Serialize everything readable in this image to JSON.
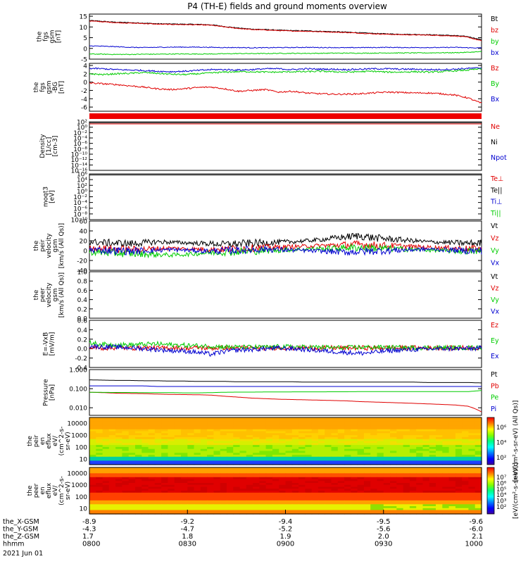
{
  "title": "P4 (TH-E) fields and ground moments overview",
  "colors": {
    "black": "#000000",
    "red": "#e00000",
    "green": "#00cc00",
    "blue": "#0000d0"
  },
  "chart_data": [
    {
      "type": "line",
      "ylabel": [
        "the",
        "fgs",
        "gsm",
        "[nT]"
      ],
      "yticks": [
        -5,
        0,
        5,
        10,
        15
      ],
      "ylim": [
        -5,
        16
      ],
      "legend": [
        {
          "name": "Bt",
          "color": "#000000"
        },
        {
          "name": "bz",
          "color": "#e00000"
        },
        {
          "name": "by",
          "color": "#00cc00"
        },
        {
          "name": "bx",
          "color": "#0000d0"
        }
      ],
      "series": [
        {
          "name": "Bt",
          "color": "#000000",
          "values": [
            13,
            12.6,
            12.2,
            12,
            11.8,
            11.5,
            11.4,
            11.3,
            11.2,
            11,
            10.2,
            9.5,
            9,
            8.8,
            8.5,
            8.3,
            8.2,
            8,
            7.8,
            7.6,
            7.3,
            7,
            6.8,
            6.6,
            6.5,
            6.4,
            6.2,
            6,
            5.5,
            4
          ]
        },
        {
          "name": "bz",
          "color": "#e00000",
          "values": [
            12.8,
            12.4,
            12,
            11.8,
            11.6,
            11.3,
            11.2,
            11.1,
            11,
            10.8,
            10,
            9.3,
            8.8,
            8.6,
            8.3,
            8.1,
            8,
            7.8,
            7.6,
            7.4,
            7.1,
            6.8,
            6.6,
            6.4,
            6.3,
            6.2,
            6,
            5.8,
            5.2,
            3.5
          ]
        },
        {
          "name": "by",
          "color": "#00cc00",
          "values": [
            -2.6,
            -2.7,
            -2.8,
            -2.8,
            -2.7,
            -2.7,
            -2.6,
            -2.6,
            -2.6,
            -2.6,
            -2.5,
            -2.4,
            -2.4,
            -2.4,
            -2.3,
            -2.3,
            -2.3,
            -2.3,
            -2.2,
            -2.2,
            -2.2,
            -2.2,
            -2.1,
            -2.1,
            -2.1,
            -2.1,
            -2,
            -2,
            -1.8,
            -1.5
          ]
        },
        {
          "name": "bx",
          "color": "#0000d0",
          "values": [
            1.2,
            1,
            0.8,
            0.5,
            0.4,
            0.5,
            0.6,
            0.6,
            0.6,
            0.5,
            0.4,
            0.4,
            0.3,
            0.3,
            0.4,
            0.4,
            0.5,
            0.4,
            0.4,
            0.3,
            0.4,
            0.4,
            0.5,
            0.4,
            0.4,
            0.4,
            0.4,
            0.5,
            0.3,
            0.2
          ]
        }
      ]
    },
    {
      "type": "line",
      "ylabel": [
        "the",
        "fgs",
        "gsm",
        "-BG",
        "[nT]"
      ],
      "yticks": [
        -6,
        -4,
        -2,
        0,
        2,
        4
      ],
      "ylim": [
        -7,
        4.5
      ],
      "legend": [
        {
          "name": "Bz",
          "color": "#e00000"
        },
        {
          "name": "By",
          "color": "#00cc00"
        },
        {
          "name": "Bx",
          "color": "#0000d0"
        }
      ],
      "series": [
        {
          "name": "Bz",
          "color": "#e00000",
          "values": [
            -0.2,
            -0.4,
            -0.6,
            -0.9,
            -1.2,
            -1.6,
            -1.8,
            -1.6,
            -1.3,
            -1.2,
            -1.6,
            -2.2,
            -2.0,
            -1.8,
            -2.4,
            -2.2,
            -2.6,
            -2.8,
            -2.9,
            -2.9,
            -2.8,
            -2.6,
            -2.4,
            -2.5,
            -2.6,
            -2.6,
            -2.8,
            -3.1,
            -3.8,
            -5.1
          ]
        },
        {
          "name": "By",
          "color": "#00cc00",
          "values": [
            2.0,
            1.8,
            2.0,
            2.1,
            2.3,
            2.1,
            1.9,
            1.8,
            2.0,
            2.2,
            2.4,
            2.5,
            2.5,
            2.4,
            2.4,
            2.5,
            2.5,
            2.6,
            2.5,
            2.4,
            2.5,
            2.6,
            2.4,
            2.4,
            2.5,
            2.4,
            2.5,
            2.7,
            2.9,
            3.2
          ]
        },
        {
          "name": "Bx",
          "color": "#0000d0",
          "values": [
            3.3,
            3.2,
            3.0,
            2.9,
            2.8,
            2.6,
            2.5,
            2.6,
            2.8,
            3.0,
            3.0,
            2.9,
            3.0,
            3.2,
            3.2,
            3.0,
            3.2,
            3.1,
            3.1,
            3.0,
            3.1,
            3.2,
            3.2,
            3.1,
            3.1,
            3.0,
            3.0,
            3.1,
            3.3,
            3.4
          ]
        }
      ]
    },
    {
      "type": "line",
      "scale": "log",
      "ylabel": [
        "Density",
        "[1/cc]",
        "[cm-3]"
      ],
      "yticks": [
        "10²",
        "10⁰",
        "10⁻²",
        "10⁻⁴",
        "10⁻⁶",
        "10⁻⁸",
        "10⁻¹⁰",
        "10⁻¹²",
        "10⁻¹⁴",
        "10⁻¹⁶"
      ],
      "legend": [
        {
          "name": "Ne",
          "color": "#e00000"
        },
        {
          "name": "Ni",
          "color": "#000000"
        },
        {
          "name": "Npot",
          "color": "#0000d0"
        }
      ]
    },
    {
      "type": "line",
      "scale": "log",
      "ylabel": [
        "moqt3",
        "[eV]"
      ],
      "yticks": [
        "10⁶",
        "10⁴",
        "10²",
        "10⁰",
        "10⁻²",
        "10⁻⁴",
        "10⁻⁶",
        "10⁻⁸",
        "10⁻¹⁰"
      ],
      "legend": [
        {
          "name": "Te⊥",
          "color": "#e00000"
        },
        {
          "name": "Te||",
          "color": "#000000"
        },
        {
          "name": "Ti⊥",
          "color": "#0000d0"
        },
        {
          "name": "Ti||",
          "color": "#00cc00"
        }
      ]
    },
    {
      "type": "line",
      "ylabel": [
        "the",
        "peir",
        "velocity",
        "gsm",
        "[km/s (All Qs)]"
      ],
      "yticks": [
        -40,
        -20,
        0,
        20,
        40,
        60
      ],
      "ylim": [
        -40,
        60
      ],
      "legend": [
        {
          "name": "Vt",
          "color": "#000000"
        },
        {
          "name": "Vz",
          "color": "#e00000"
        },
        {
          "name": "Vy",
          "color": "#00cc00"
        },
        {
          "name": "Vx",
          "color": "#0000d0"
        }
      ],
      "series": [
        {
          "name": "Vt",
          "color": "#000000",
          "values": [
            18,
            16,
            15,
            14,
            16,
            18,
            17,
            16,
            15,
            14,
            13,
            14,
            15,
            16,
            17,
            18,
            20,
            22,
            25,
            28,
            30,
            26,
            24,
            22,
            20,
            18,
            17,
            16,
            15,
            15
          ]
        },
        {
          "name": "Vz",
          "color": "#e00000",
          "values": [
            5,
            4,
            3,
            2,
            3,
            4,
            5,
            4,
            3,
            2,
            3,
            4,
            5,
            6,
            7,
            8,
            9,
            10,
            11,
            12,
            13,
            11,
            10,
            9,
            8,
            7,
            6,
            5,
            4,
            4
          ]
        },
        {
          "name": "Vy",
          "color": "#00cc00",
          "values": [
            -3,
            -4,
            -5,
            -6,
            -7,
            -8,
            -9,
            -8,
            -6,
            -4,
            -3,
            -2,
            -1,
            0,
            1,
            2,
            3,
            4,
            5,
            6,
            6,
            5,
            4,
            3,
            2,
            1,
            0,
            -1,
            -1,
            -2
          ]
        },
        {
          "name": "Vx",
          "color": "#0000d0",
          "values": [
            2,
            1,
            0,
            -1,
            0,
            1,
            2,
            1,
            0,
            -1,
            0,
            1,
            2,
            3,
            2,
            1,
            0,
            -1,
            -2,
            -3,
            -2,
            -1,
            0,
            1,
            2,
            3,
            2,
            1,
            0,
            0
          ]
        }
      ]
    },
    {
      "type": "line",
      "ylabel": [
        "the",
        "peer",
        "velocity",
        "gsm",
        "[km/s (All Qs)]"
      ],
      "yticks": [
        "0.0",
        "0.2",
        "0.4",
        "0.6",
        "0.8",
        "1.0"
      ],
      "ylim": [
        0,
        1
      ],
      "legend": [
        {
          "name": "Vt",
          "color": "#000000"
        },
        {
          "name": "Vz",
          "color": "#e00000"
        },
        {
          "name": "Vy",
          "color": "#00cc00"
        },
        {
          "name": "Vx",
          "color": "#0000d0"
        }
      ]
    },
    {
      "type": "line",
      "ylabel": [
        "E=-VxB",
        "[mV/m]"
      ],
      "yticks": [
        "-0.4",
        "-0.2",
        "0.0",
        "0.2",
        "0.4",
        "0.6"
      ],
      "ylim": [
        -0.4,
        0.6
      ],
      "legend": [
        {
          "name": "Ez",
          "color": "#e00000"
        },
        {
          "name": "Ey",
          "color": "#00cc00"
        },
        {
          "name": "Ex",
          "color": "#0000d0"
        }
      ],
      "series": [
        {
          "name": "Ez",
          "color": "#e00000",
          "values": [
            0.02,
            0.01,
            0.02,
            0.01,
            0.02,
            0.01,
            0.02,
            0.01,
            0.02,
            0.01,
            0.02,
            0.01,
            0.02,
            0.01,
            0.02,
            0.01,
            0.02,
            0.01,
            0.02,
            0.01,
            0.02,
            0.01,
            0.02,
            0.01,
            0.02,
            0.01,
            0.02,
            0.01,
            0.02,
            0.01
          ]
        },
        {
          "name": "Ey",
          "color": "#00cc00",
          "values": [
            0.12,
            0.09,
            0.08,
            0.08,
            0.09,
            0.1,
            0.08,
            0.07,
            0.06,
            0.05,
            0.04,
            0.03,
            0.03,
            0.03,
            0.04,
            0.04,
            0.03,
            0.03,
            0.02,
            0.02,
            0.03,
            0.03,
            0.03,
            0.02,
            0.02,
            0.02,
            0.02,
            0.02,
            0.02,
            0.02
          ]
        },
        {
          "name": "Ex",
          "color": "#0000d0",
          "values": [
            0.05,
            0.04,
            0.03,
            0.02,
            0.0,
            -0.02,
            -0.04,
            -0.05,
            -0.08,
            -0.12,
            -0.06,
            -0.03,
            -0.02,
            0.0,
            0.01,
            0.0,
            -0.02,
            -0.04,
            -0.06,
            -0.08,
            -0.1,
            -0.08,
            -0.05,
            -0.03,
            -0.02,
            -0.01,
            0.0,
            0.0,
            0.0,
            0.01
          ]
        }
      ]
    },
    {
      "type": "line",
      "scale": "log",
      "ylabel": [
        "Pressure",
        "[nPa]"
      ],
      "yticks": [
        "0.010",
        "0.100",
        "1.000"
      ],
      "ylim": [
        0.004,
        1.0
      ],
      "legend": [
        {
          "name": "Pt",
          "color": "#000000"
        },
        {
          "name": "Pb",
          "color": "#e00000"
        },
        {
          "name": "Pe",
          "color": "#00cc00"
        },
        {
          "name": "Pi",
          "color": "#0000d0"
        }
      ],
      "series": [
        {
          "name": "Pt",
          "color": "#000000",
          "values": [
            0.29,
            0.28,
            0.27,
            0.27,
            0.26,
            0.26,
            0.25,
            0.25,
            0.24,
            0.24,
            0.24,
            0.23,
            0.23,
            0.23,
            0.23,
            0.23,
            0.22,
            0.22,
            0.22,
            0.22,
            0.22,
            0.22,
            0.22,
            0.22,
            0.22,
            0.21,
            0.21,
            0.21,
            0.21,
            0.2
          ]
        },
        {
          "name": "Pb",
          "color": "#e00000",
          "values": [
            0.065,
            0.062,
            0.058,
            0.056,
            0.055,
            0.052,
            0.05,
            0.049,
            0.048,
            0.046,
            0.04,
            0.036,
            0.032,
            0.03,
            0.028,
            0.027,
            0.026,
            0.025,
            0.024,
            0.023,
            0.021,
            0.02,
            0.019,
            0.018,
            0.017,
            0.016,
            0.015,
            0.014,
            0.012,
            0.006
          ]
        },
        {
          "name": "Pe",
          "color": "#00cc00",
          "values": [
            0.065,
            0.064,
            0.063,
            0.063,
            0.062,
            0.062,
            0.062,
            0.06,
            0.06,
            0.062,
            0.065,
            0.066,
            0.066,
            0.067,
            0.067,
            0.068,
            0.068,
            0.068,
            0.069,
            0.069,
            0.07,
            0.07,
            0.07,
            0.07,
            0.07,
            0.07,
            0.07,
            0.07,
            0.07,
            0.08
          ]
        },
        {
          "name": "Pi",
          "color": "#0000d0",
          "values": [
            0.14,
            0.14,
            0.14,
            0.14,
            0.14,
            0.13,
            0.13,
            0.13,
            0.13,
            0.13,
            0.13,
            0.13,
            0.13,
            0.13,
            0.13,
            0.13,
            0.13,
            0.13,
            0.13,
            0.13,
            0.13,
            0.13,
            0.13,
            0.13,
            0.13,
            0.13,
            0.13,
            0.13,
            0.13,
            0.13
          ]
        }
      ]
    },
    {
      "type": "heatmap",
      "ylabel": [
        "the",
        "peir",
        "en",
        "eflux",
        "eV/",
        "(cm^2-s-",
        "sr-eV)"
      ],
      "yticks": [
        "10",
        "100",
        "1000",
        "10000"
      ],
      "colorbar_ticks": [
        "10²",
        "10⁴",
        "10⁶"
      ],
      "colorbar_label": "[eV/(cm²-s-sr-eV) (All Qs)]"
    },
    {
      "type": "heatmap",
      "ylabel": [
        "the",
        "peer",
        "en",
        "eflux",
        "eV/",
        "(cm^2-s-",
        "sr-eV)"
      ],
      "yticks": [
        "10",
        "100",
        "1000",
        "10000"
      ],
      "colorbar_ticks": [
        "10²",
        "10³",
        "10⁴",
        "10⁵",
        "10⁶",
        "10⁷"
      ],
      "colorbar_label": "[eV/(cm²-s-sr-eV)]"
    }
  ],
  "xaxis": {
    "rows": [
      {
        "label": "the_X-GSM",
        "values": [
          "-8.9",
          "-9.2",
          "-9.4",
          "-9.5",
          "-9.6"
        ]
      },
      {
        "label": "the_Y-GSM",
        "values": [
          "-4.3",
          "-4.7",
          "-5.2",
          "-5.6",
          "-6.0"
        ]
      },
      {
        "label": "the_Z-GSM",
        "values": [
          "1.7",
          "1.8",
          "1.9",
          "2.0",
          "2.1"
        ]
      },
      {
        "label": "hhmm",
        "values": [
          "0800",
          "0830",
          "0900",
          "0930",
          "1000"
        ]
      }
    ],
    "date": "2021 Jun 01"
  }
}
